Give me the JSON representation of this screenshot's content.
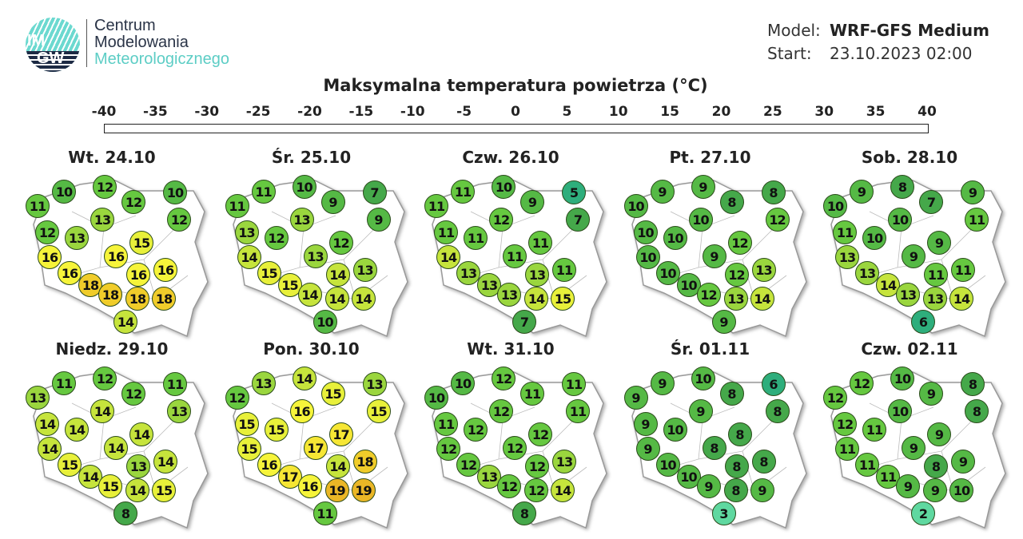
{
  "logo": {
    "text_top": "IM",
    "text_bottom": "GW"
  },
  "organization": [
    "Centrum",
    "Modelowania",
    "Meteorologicznego"
  ],
  "model": {
    "label": "Model:",
    "value": "WRF-GFS Medium"
  },
  "start": {
    "label": "Start:",
    "value": "23.10.2023 02:00"
  },
  "title": "Maksymalna temperatura powietrza (°C)",
  "colorbar": {
    "ticks": [
      "-40",
      "-35",
      "-30",
      "-25",
      "-20",
      "-15",
      "-10",
      "-5",
      "0",
      "5",
      "10",
      "15",
      "20",
      "25",
      "30",
      "35",
      "40"
    ],
    "min": -40,
    "max": 40
  },
  "chart_data": {
    "type": "map",
    "title": "Maksymalna temperatura powietrza (°C)",
    "maps": [
      {
        "title": "Wt. 24.10",
        "values": [
          11,
          10,
          12,
          12,
          10,
          12,
          13,
          12,
          13,
          16,
          15,
          16,
          16,
          18,
          18,
          18,
          16,
          16,
          18,
          14
        ]
      },
      {
        "title": "Śr. 25.10",
        "values": [
          11,
          11,
          10,
          9,
          7,
          9,
          13,
          13,
          12,
          14,
          12,
          13,
          15,
          15,
          14,
          14,
          14,
          13,
          14,
          10
        ]
      },
      {
        "title": "Czw. 26.10",
        "values": [
          11,
          11,
          10,
          9,
          5,
          7,
          12,
          11,
          11,
          14,
          11,
          11,
          13,
          13,
          13,
          14,
          13,
          11,
          15,
          7
        ]
      },
      {
        "title": "Pt. 27.10",
        "values": [
          10,
          9,
          9,
          8,
          8,
          12,
          10,
          10,
          10,
          10,
          12,
          9,
          10,
          10,
          12,
          13,
          12,
          13,
          14,
          9
        ]
      },
      {
        "title": "Sob. 28.10",
        "values": [
          10,
          9,
          8,
          7,
          9,
          11,
          10,
          11,
          10,
          13,
          9,
          9,
          13,
          14,
          13,
          13,
          11,
          11,
          14,
          6
        ]
      },
      {
        "title": "Niedz. 29.10",
        "values": [
          13,
          11,
          12,
          12,
          11,
          13,
          14,
          14,
          14,
          14,
          14,
          14,
          15,
          14,
          15,
          14,
          13,
          14,
          15,
          8
        ]
      },
      {
        "title": "Pon. 30.10",
        "values": [
          12,
          13,
          14,
          15,
          13,
          15,
          16,
          15,
          15,
          15,
          17,
          17,
          16,
          17,
          16,
          19,
          14,
          18,
          19,
          11
        ]
      },
      {
        "title": "Wt. 31.10",
        "values": [
          10,
          10,
          12,
          11,
          11,
          11,
          12,
          11,
          12,
          12,
          12,
          12,
          12,
          13,
          12,
          12,
          12,
          13,
          14,
          8
        ]
      },
      {
        "title": "Śr. 01.11",
        "values": [
          9,
          9,
          10,
          8,
          6,
          8,
          9,
          9,
          10,
          9,
          8,
          8,
          10,
          10,
          9,
          8,
          8,
          8,
          9,
          3
        ]
      },
      {
        "title": "Czw. 02.11",
        "values": [
          12,
          12,
          10,
          9,
          8,
          8,
          10,
          12,
          11,
          11,
          9,
          9,
          11,
          11,
          9,
          9,
          8,
          9,
          10,
          2
        ]
      }
    ]
  }
}
